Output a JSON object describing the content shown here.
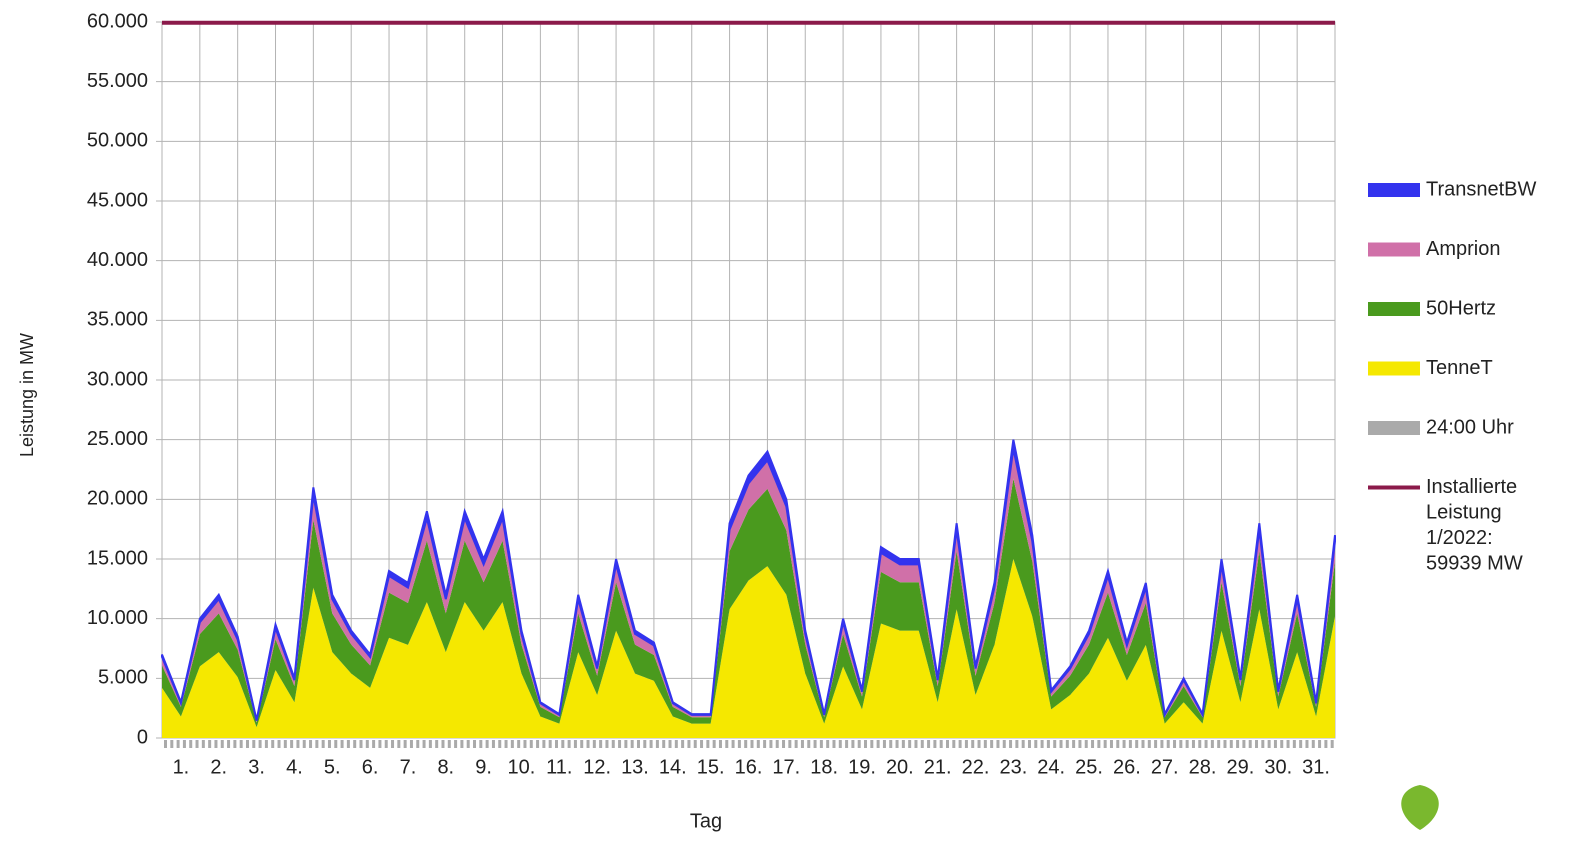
{
  "chart_data": {
    "type": "stacked-area",
    "x_label": "Tag",
    "y_label": "Leistung in MW",
    "xlim": [
      1,
      32
    ],
    "xticks": [
      {
        "value": 1,
        "label": "1."
      },
      {
        "value": 2,
        "label": "2."
      },
      {
        "value": 3,
        "label": "3."
      },
      {
        "value": 4,
        "label": "4."
      },
      {
        "value": 5,
        "label": "5."
      },
      {
        "value": 6,
        "label": "6."
      },
      {
        "value": 7,
        "label": "7."
      },
      {
        "value": 8,
        "label": "8."
      },
      {
        "value": 9,
        "label": "9."
      },
      {
        "value": 10,
        "label": "10."
      },
      {
        "value": 11,
        "label": "11."
      },
      {
        "value": 12,
        "label": "12."
      },
      {
        "value": 13,
        "label": "13."
      },
      {
        "value": 14,
        "label": "14."
      },
      {
        "value": 15,
        "label": "15."
      },
      {
        "value": 16,
        "label": "16."
      },
      {
        "value": 17,
        "label": "17."
      },
      {
        "value": 18,
        "label": "18."
      },
      {
        "value": 19,
        "label": "19."
      },
      {
        "value": 20,
        "label": "20."
      },
      {
        "value": 21,
        "label": "21."
      },
      {
        "value": 22,
        "label": "22."
      },
      {
        "value": 23,
        "label": "23."
      },
      {
        "value": 24,
        "label": "24."
      },
      {
        "value": 25,
        "label": "25."
      },
      {
        "value": 26,
        "label": "26."
      },
      {
        "value": 27,
        "label": "27."
      },
      {
        "value": 28,
        "label": "28."
      },
      {
        "value": 29,
        "label": "29."
      },
      {
        "value": 30,
        "label": "30."
      },
      {
        "value": 31,
        "label": "31."
      }
    ],
    "ylim": [
      0,
      60000
    ],
    "yticks": [
      0,
      {
        "value": 5000,
        "label": "5.000"
      },
      {
        "value": 10000,
        "label": "10.000"
      },
      {
        "value": 15000,
        "label": "15.000"
      },
      {
        "value": 20000,
        "label": "20.000"
      },
      {
        "value": 25000,
        "label": "25.000"
      },
      {
        "value": 30000,
        "label": "30.000"
      },
      {
        "value": 35000,
        "label": "35.000"
      },
      {
        "value": 40000,
        "label": "40.000"
      },
      {
        "value": 45000,
        "label": "45.000"
      },
      {
        "value": 50000,
        "label": "50.000"
      },
      {
        "value": 55000,
        "label": "55.000"
      },
      {
        "value": 60000,
        "label": "60.000"
      }
    ],
    "grid": true,
    "x": [
      1,
      1.5,
      2,
      2.5,
      3,
      3.5,
      4,
      4.5,
      5,
      5.5,
      6,
      6.5,
      7,
      7.5,
      8,
      8.5,
      9,
      9.5,
      10,
      10.5,
      11,
      11.5,
      12,
      12.5,
      13,
      13.5,
      14,
      14.5,
      15,
      15.5,
      16,
      16.5,
      17,
      17.5,
      18,
      18.5,
      19,
      19.5,
      20,
      20.5,
      21,
      21.5,
      22,
      22.5,
      23,
      23.5,
      24,
      24.5,
      25,
      25.5,
      26,
      26.5,
      27,
      27.5,
      28,
      28.5,
      29,
      29.5,
      30,
      30.5,
      31,
      31.5,
      32
    ],
    "series": [
      {
        "name": "TransnetBW",
        "color": "#3333ee",
        "values": [
          210,
          90,
          300,
          360,
          250,
          50,
          280,
          150,
          630,
          360,
          270,
          210,
          420,
          390,
          570,
          360,
          570,
          450,
          570,
          270,
          90,
          60,
          360,
          180,
          450,
          270,
          240,
          90,
          60,
          60,
          540,
          660,
          720,
          600,
          270,
          60,
          300,
          120,
          480,
          450,
          450,
          150,
          540,
          180,
          390,
          750,
          510,
          120,
          180,
          270,
          420,
          240,
          390,
          60,
          150,
          60,
          450,
          150,
          540,
          120,
          360,
          90,
          510
        ]
      },
      {
        "name": "Amprion",
        "color": "#d070a8",
        "values": [
          700,
          300,
          1000,
          1200,
          850,
          150,
          950,
          500,
          2100,
          1200,
          900,
          700,
          1400,
          1300,
          1900,
          1200,
          1900,
          1500,
          1900,
          900,
          300,
          200,
          1200,
          600,
          1500,
          900,
          800,
          300,
          200,
          200,
          1800,
          2200,
          2400,
          2000,
          900,
          200,
          1000,
          400,
          1600,
          1500,
          1500,
          500,
          1800,
          600,
          1300,
          2500,
          1700,
          400,
          600,
          900,
          1400,
          800,
          1300,
          200,
          500,
          200,
          1500,
          500,
          1800,
          400,
          1200,
          300,
          1700
        ]
      },
      {
        "name": "50Hertz",
        "color": "#4a9a1e",
        "values": [
          1890,
          810,
          2700,
          3240,
          2300,
          400,
          2570,
          1350,
          5670,
          3240,
          2430,
          1890,
          3780,
          3510,
          5130,
          3240,
          5130,
          4050,
          5130,
          2430,
          810,
          540,
          3240,
          1620,
          4050,
          2430,
          2160,
          810,
          540,
          540,
          4860,
          5940,
          6480,
          5400,
          2430,
          540,
          2700,
          1080,
          4320,
          4050,
          4050,
          1350,
          4860,
          1620,
          3510,
          6750,
          4590,
          1080,
          1620,
          2430,
          3780,
          2160,
          3510,
          540,
          1350,
          540,
          4050,
          1350,
          4860,
          1080,
          3240,
          810,
          4590
        ]
      },
      {
        "name": "TenneT",
        "color": "#f5e800",
        "values": [
          4200,
          1800,
          6000,
          7200,
          5100,
          900,
          5700,
          3000,
          12600,
          7200,
          5400,
          4200,
          8400,
          7800,
          11400,
          7200,
          11400,
          9000,
          11400,
          5400,
          1800,
          1200,
          7200,
          3600,
          9000,
          5400,
          4800,
          1800,
          1200,
          1200,
          10800,
          13200,
          14400,
          12000,
          5400,
          1200,
          6000,
          2400,
          9600,
          9000,
          9000,
          3000,
          10800,
          3600,
          7800,
          15000,
          10200,
          2400,
          3600,
          5400,
          8400,
          4800,
          7800,
          1200,
          3000,
          1200,
          9000,
          3000,
          10800,
          2400,
          7200,
          1800,
          10200
        ]
      }
    ],
    "midnight_marker": {
      "name": "24:00 Uhr",
      "color": "#aaaaaa"
    },
    "capacity": {
      "name_lines": [
        "Installierte",
        "Leistung",
        "1/2022:",
        "59939 MW"
      ],
      "value": 59939,
      "color": "#8b1a4a"
    }
  }
}
